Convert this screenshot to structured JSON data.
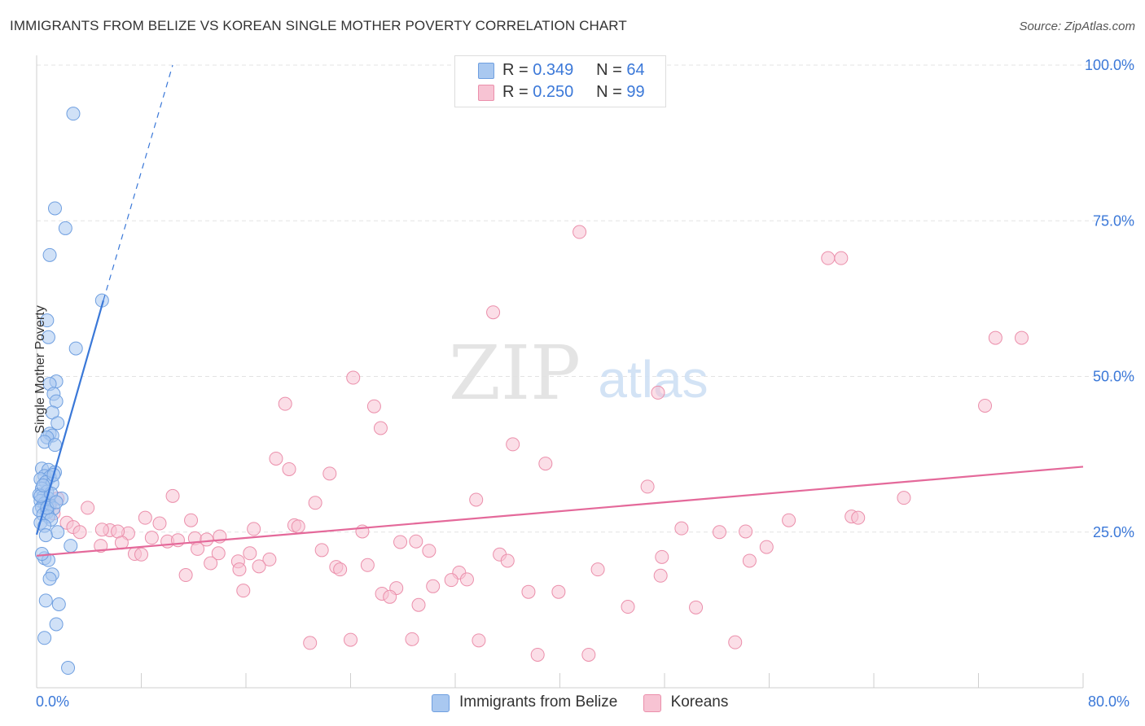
{
  "title": "IMMIGRANTS FROM BELIZE VS KOREAN SINGLE MOTHER POVERTY CORRELATION CHART",
  "source": "Source: ZipAtlas.com",
  "watermark": {
    "zip": "ZIP",
    "atlas": "atlas"
  },
  "legend": {
    "belize": {
      "r_label": "R =",
      "r_value": "0.349",
      "n_label": "N =",
      "n_value": "64"
    },
    "koreans": {
      "r_label": "R =",
      "r_value": "0.250",
      "n_label": "N =",
      "n_value": "99"
    }
  },
  "bottom_legend": {
    "belize": "Immigrants from Belize",
    "koreans": "Koreans"
  },
  "colors": {
    "belize_fill": "#a9c8f0",
    "belize_stroke": "#6f9fe0",
    "belize_line": "#3a78d8",
    "koreans_fill": "#f7c3d3",
    "koreans_stroke": "#eb8fab",
    "koreans_line": "#e4699a",
    "tick_text": "#3b78d8"
  },
  "chart_data": {
    "type": "scatter",
    "title": "IMMIGRANTS FROM BELIZE VS KOREAN SINGLE MOTHER POVERTY CORRELATION CHART",
    "xlabel": "",
    "ylabel": "Single Mother Poverty",
    "xlim": [
      0,
      80
    ],
    "ylim": [
      0,
      100
    ],
    "x_tick_labels": [
      "0.0%",
      "80.0%"
    ],
    "y_ticks": [
      25,
      50,
      75,
      100
    ],
    "y_tick_labels": [
      "25.0%",
      "50.0%",
      "75.0%",
      "100.0%"
    ],
    "series": [
      {
        "name": "Immigrants from Belize",
        "r": 0.349,
        "n": 64,
        "trend": {
          "x": [
            0.0,
            5.1
          ],
          "y": [
            24.6,
            62.2
          ],
          "extend_to": [
            10.4,
            100.0
          ]
        },
        "points": [
          [
            2.8,
            92.2
          ],
          [
            1.4,
            77.0
          ],
          [
            2.2,
            73.8
          ],
          [
            1.0,
            69.5
          ],
          [
            5.0,
            62.2
          ],
          [
            0.8,
            59.0
          ],
          [
            0.9,
            56.3
          ],
          [
            3.0,
            54.5
          ],
          [
            1.5,
            49.2
          ],
          [
            1.0,
            48.8
          ],
          [
            1.3,
            47.2
          ],
          [
            1.5,
            46.0
          ],
          [
            1.2,
            44.2
          ],
          [
            1.6,
            42.5
          ],
          [
            1.0,
            40.8
          ],
          [
            1.2,
            40.5
          ],
          [
            0.8,
            40.2
          ],
          [
            0.6,
            39.5
          ],
          [
            1.4,
            39.0
          ],
          [
            0.4,
            35.2
          ],
          [
            0.9,
            35.0
          ],
          [
            1.4,
            34.6
          ],
          [
            0.6,
            34.0
          ],
          [
            1.0,
            33.8
          ],
          [
            0.3,
            33.5
          ],
          [
            0.7,
            33.0
          ],
          [
            1.2,
            32.8
          ],
          [
            0.4,
            32.0
          ],
          [
            0.8,
            31.5
          ],
          [
            0.2,
            31.0
          ],
          [
            0.5,
            30.6
          ],
          [
            0.9,
            30.4
          ],
          [
            0.3,
            30.0
          ],
          [
            1.9,
            30.4
          ],
          [
            0.6,
            29.6
          ],
          [
            1.0,
            29.3
          ],
          [
            0.4,
            29.0
          ],
          [
            1.3,
            28.8
          ],
          [
            0.2,
            28.5
          ],
          [
            0.8,
            28.2
          ],
          [
            0.5,
            27.8
          ],
          [
            0.9,
            27.5
          ],
          [
            1.1,
            27.0
          ],
          [
            0.3,
            26.5
          ],
          [
            0.6,
            26.0
          ],
          [
            1.6,
            25.0
          ],
          [
            0.7,
            24.5
          ],
          [
            2.6,
            22.8
          ],
          [
            0.6,
            20.8
          ],
          [
            0.9,
            20.5
          ],
          [
            0.4,
            21.5
          ],
          [
            1.2,
            18.2
          ],
          [
            1.0,
            17.5
          ],
          [
            0.7,
            14.0
          ],
          [
            1.7,
            13.4
          ],
          [
            1.5,
            10.2
          ],
          [
            0.6,
            8.0
          ],
          [
            2.4,
            3.2
          ],
          [
            0.3,
            30.8
          ],
          [
            1.1,
            31.2
          ],
          [
            0.8,
            28.9
          ],
          [
            1.5,
            29.8
          ],
          [
            0.5,
            32.5
          ],
          [
            1.3,
            34.2
          ]
        ]
      },
      {
        "name": "Koreans",
        "r": 0.25,
        "n": 99,
        "trend": {
          "x": [
            0.0,
            80.0
          ],
          "y": [
            21.2,
            35.5
          ]
        },
        "points": [
          [
            41.5,
            73.2
          ],
          [
            60.5,
            69.0
          ],
          [
            61.5,
            69.0
          ],
          [
            34.9,
            60.3
          ],
          [
            73.3,
            56.2
          ],
          [
            75.3,
            56.2
          ],
          [
            24.2,
            49.8
          ],
          [
            47.5,
            47.4
          ],
          [
            19.0,
            45.6
          ],
          [
            25.8,
            45.2
          ],
          [
            72.5,
            45.3
          ],
          [
            26.3,
            41.7
          ],
          [
            36.4,
            39.1
          ],
          [
            18.3,
            36.8
          ],
          [
            38.9,
            36.0
          ],
          [
            19.3,
            35.1
          ],
          [
            22.4,
            34.4
          ],
          [
            46.7,
            32.3
          ],
          [
            66.3,
            30.5
          ],
          [
            10.4,
            30.8
          ],
          [
            33.6,
            30.2
          ],
          [
            21.3,
            29.7
          ],
          [
            3.9,
            28.9
          ],
          [
            1.0,
            29.5
          ],
          [
            1.3,
            28.0
          ],
          [
            1.6,
            30.4
          ],
          [
            8.3,
            27.3
          ],
          [
            11.8,
            26.9
          ],
          [
            57.5,
            26.9
          ],
          [
            62.3,
            27.5
          ],
          [
            62.8,
            27.3
          ],
          [
            9.4,
            26.4
          ],
          [
            19.7,
            26.1
          ],
          [
            20.0,
            25.9
          ],
          [
            16.6,
            25.5
          ],
          [
            2.3,
            26.5
          ],
          [
            2.8,
            25.8
          ],
          [
            3.3,
            25.0
          ],
          [
            5.6,
            25.3
          ],
          [
            7.0,
            24.8
          ],
          [
            5.0,
            25.4
          ],
          [
            6.2,
            25.1
          ],
          [
            49.3,
            25.6
          ],
          [
            52.2,
            25.0
          ],
          [
            54.2,
            25.1
          ],
          [
            24.9,
            25.1
          ],
          [
            14.0,
            24.3
          ],
          [
            12.1,
            24.0
          ],
          [
            8.8,
            24.1
          ],
          [
            10.0,
            23.5
          ],
          [
            10.8,
            23.7
          ],
          [
            13.0,
            23.8
          ],
          [
            27.8,
            23.4
          ],
          [
            29.0,
            23.5
          ],
          [
            6.5,
            23.3
          ],
          [
            4.9,
            22.8
          ],
          [
            12.3,
            22.3
          ],
          [
            21.8,
            22.1
          ],
          [
            30.0,
            22.0
          ],
          [
            13.9,
            21.6
          ],
          [
            16.3,
            21.6
          ],
          [
            7.5,
            21.5
          ],
          [
            8.0,
            21.4
          ],
          [
            35.4,
            21.4
          ],
          [
            36.0,
            20.4
          ],
          [
            13.3,
            20.0
          ],
          [
            15.4,
            20.3
          ],
          [
            17.8,
            20.6
          ],
          [
            17.0,
            19.5
          ],
          [
            15.5,
            19.0
          ],
          [
            22.9,
            19.4
          ],
          [
            23.2,
            19.0
          ],
          [
            25.3,
            19.7
          ],
          [
            42.9,
            19.0
          ],
          [
            47.8,
            21.0
          ],
          [
            54.5,
            20.4
          ],
          [
            55.8,
            22.6
          ],
          [
            11.4,
            18.1
          ],
          [
            32.3,
            18.5
          ],
          [
            31.7,
            17.3
          ],
          [
            32.9,
            17.4
          ],
          [
            30.3,
            16.3
          ],
          [
            47.7,
            18.0
          ],
          [
            27.5,
            16.0
          ],
          [
            26.4,
            15.1
          ],
          [
            27.0,
            14.6
          ],
          [
            37.6,
            15.4
          ],
          [
            39.9,
            15.4
          ],
          [
            15.8,
            15.6
          ],
          [
            29.2,
            13.3
          ],
          [
            45.2,
            13.0
          ],
          [
            50.4,
            12.9
          ],
          [
            20.9,
            7.2
          ],
          [
            24.0,
            7.7
          ],
          [
            28.7,
            7.8
          ],
          [
            33.8,
            7.6
          ],
          [
            38.3,
            5.3
          ],
          [
            42.2,
            5.3
          ],
          [
            53.4,
            7.3
          ]
        ]
      }
    ]
  }
}
